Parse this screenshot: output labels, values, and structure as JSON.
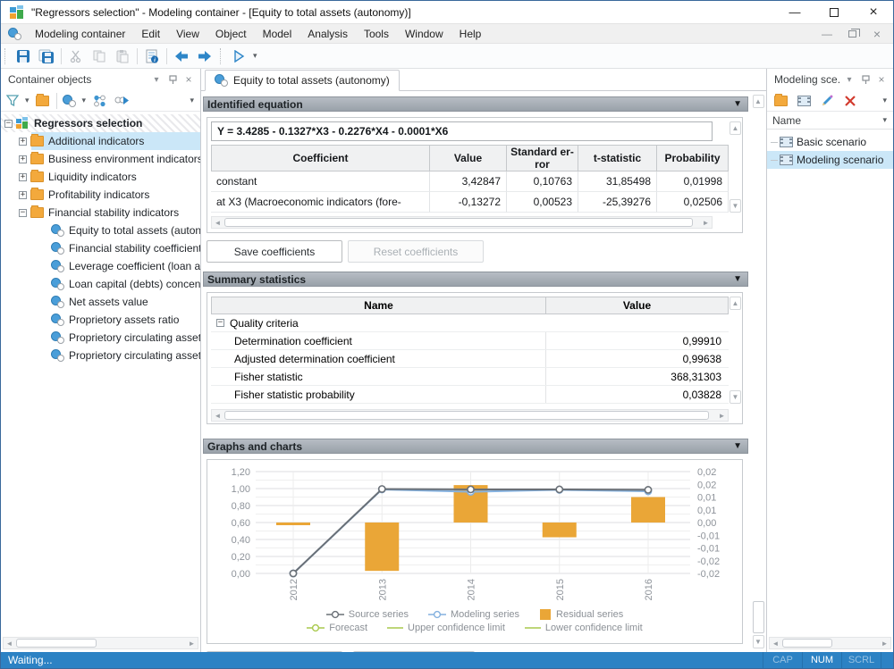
{
  "window": {
    "title": "\"Regressors selection\" - Modeling container - [Equity to total assets (autonomy)]"
  },
  "menu": {
    "items": [
      "Modeling container",
      "Edit",
      "View",
      "Object",
      "Model",
      "Analysis",
      "Tools",
      "Window",
      "Help"
    ]
  },
  "left_panel": {
    "title": "Container objects",
    "tree": [
      {
        "label": "Regressors selection",
        "level": 0,
        "icon": "blocks",
        "expander": "minus",
        "hatched": true,
        "bold": true
      },
      {
        "label": "Additional indicators",
        "level": 1,
        "icon": "folder",
        "expander": "plus",
        "selected": true
      },
      {
        "label": "Business environment indicators",
        "level": 1,
        "icon": "folder",
        "expander": "plus"
      },
      {
        "label": "Liquidity indicators",
        "level": 1,
        "icon": "folder",
        "expander": "plus"
      },
      {
        "label": "Profitability indicators",
        "level": 1,
        "icon": "folder",
        "expander": "plus"
      },
      {
        "label": "Financial stability indicators",
        "level": 1,
        "icon": "folder",
        "expander": "minus"
      },
      {
        "label": "Equity to total assets (autonomy)",
        "level": 2,
        "icon": "sphere"
      },
      {
        "label": "Financial stability coefficient",
        "level": 2,
        "icon": "sphere"
      },
      {
        "label": "Leverage coefficient (loan assets)",
        "level": 2,
        "icon": "sphere"
      },
      {
        "label": "Loan capital (debts) concentration",
        "level": 2,
        "icon": "sphere"
      },
      {
        "label": "Net assets value",
        "level": 2,
        "icon": "sphere"
      },
      {
        "label": "Proprietory assets ratio",
        "level": 2,
        "icon": "sphere"
      },
      {
        "label": "Proprietory circulating assets",
        "level": 2,
        "icon": "sphere"
      },
      {
        "label": "Proprietory circulating assets",
        "level": 2,
        "icon": "sphere"
      }
    ]
  },
  "main": {
    "tab": "Equity to total assets (autonomy)",
    "identified_equation": {
      "header": "Identified equation",
      "equation": "Y = 3.4285 - 0.1327*X3 - 0.2276*X4 - 0.0001*X6",
      "columns": [
        "Coefficient",
        "Value",
        "Standard er-ror",
        "t-statistic",
        "Probability"
      ],
      "rows": [
        [
          "constant",
          "3,42847",
          "0,10763",
          "31,85498",
          "0,01998"
        ],
        [
          "at X3 (Macroeconomic indicators (fore-",
          "-0,13272",
          "0,00523",
          "-25,39276",
          "0,02506"
        ]
      ],
      "save_button": "Save coefficients",
      "reset_button": "Reset coefficients"
    },
    "summary": {
      "header": "Summary statistics",
      "columns": [
        "Name",
        "Value"
      ],
      "group": "Quality criteria",
      "rows": [
        [
          "Determination coefficient",
          "0,99910"
        ],
        [
          "Adjusted determination coefficient",
          "0,99638"
        ],
        [
          "Fisher statistic",
          "368,31303"
        ],
        [
          "Fisher statistic probability",
          "0,03828"
        ]
      ]
    },
    "charts_header": "Graphs and charts"
  },
  "right_panel": {
    "title": "Modeling sce...",
    "column": "Name",
    "items": [
      {
        "label": "Basic scenario",
        "selected": false
      },
      {
        "label": "Modeling scenario",
        "selected": true
      }
    ]
  },
  "status_bar": {
    "text": "Waiting...",
    "indicators": [
      {
        "label": "CAP",
        "active": false
      },
      {
        "label": "NUM",
        "active": true
      },
      {
        "label": "SCRL",
        "active": false
      }
    ]
  },
  "colors": {
    "accent_blue": "#2e86c8",
    "selection": "#cbe7f8",
    "status_bar": "#2c82c4",
    "bar_orange": "#eaa637",
    "line_grey": "#6a7077",
    "line_blue": "#84b1df",
    "line_green": "#a9c94d"
  },
  "chart_data": {
    "type": "combo",
    "categories": [
      "2012",
      "2013",
      "2014",
      "2015",
      "2016"
    ],
    "series": [
      {
        "name": "Source series",
        "type": "line",
        "axis": "left",
        "color": "#6a7077",
        "values": [
          0.0,
          0.995,
          0.99,
          0.99,
          0.985
        ]
      },
      {
        "name": "Modeling series",
        "type": "line",
        "axis": "left",
        "color": "#84b1df",
        "values": [
          0.0,
          0.99,
          0.962,
          0.985,
          0.968
        ]
      },
      {
        "name": "Residual series",
        "type": "bar",
        "axis": "right",
        "color": "#eaa637",
        "values": [
          -0.0005,
          -0.019,
          0.0147,
          -0.0058,
          0.01
        ]
      }
    ],
    "legend_extra": [
      {
        "name": "Forecast",
        "color": "#a9c94d",
        "marker": "line-circle"
      },
      {
        "name": "Upper confidence limit",
        "color": "#a9c94d",
        "marker": "line"
      },
      {
        "name": "Lower confidence limit",
        "color": "#a9c94d",
        "marker": "line"
      }
    ],
    "left_axis": {
      "min": 0,
      "max": 1.2,
      "step": 0.2,
      "labels": [
        "0,00",
        "0,20",
        "0,40",
        "0,60",
        "0,80",
        "1,00",
        "1,20"
      ]
    },
    "right_axis": {
      "min": -0.02,
      "max": 0.02,
      "step": 0.005,
      "labels": [
        "0,02",
        "0,02",
        "0,01",
        "0,01",
        "0,00",
        "-0,01",
        "-0,01",
        "-0,02",
        "-0,02"
      ]
    },
    "grid": true,
    "legend_position": "bottom"
  }
}
